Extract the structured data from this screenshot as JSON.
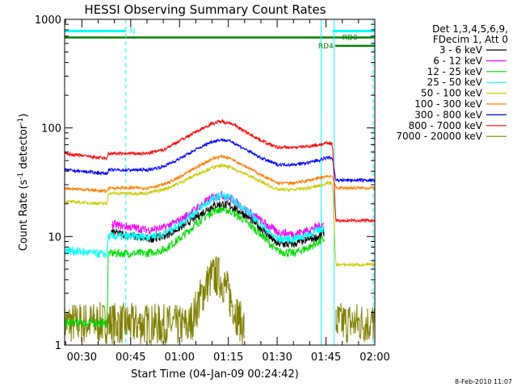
{
  "chart_data": {
    "type": "line",
    "title": "HESSI Observing Summary Count Rates",
    "xlabel": "Start Time (04-Jan-09 00:24:42)",
    "ylabel": "Count Rate (s⁻¹ detector⁻¹)",
    "ylabel_main": "Count Rate (s",
    "ylabel_sup1": "-1",
    "ylabel_mid": " detector",
    "ylabel_sup2": "-1",
    "ylabel_end": ")",
    "x_unit": "minutes",
    "xlim": [
      24.7,
      120
    ],
    "x_ticks": [
      30,
      45,
      60,
      75,
      90,
      105,
      120
    ],
    "x_tick_labels": [
      "00:30",
      "00:45",
      "01:00",
      "01:15",
      "01:30",
      "01:45",
      "02:00"
    ],
    "yscale": "log",
    "ylim": [
      1,
      1000
    ],
    "y_ticks": [
      1,
      10,
      100,
      1000
    ],
    "y_tick_labels": [
      "1",
      "10",
      "100",
      "1000"
    ],
    "grid": false,
    "legend_position": "right",
    "legend_header": [
      "Det 1,3,4,5,6,9,",
      "FDecim 1, Att 0"
    ],
    "timestamp": "8-Feb-2010 11:07",
    "colors": {
      "3-6": "#000000",
      "6-12": "#ff00ff",
      "12-25": "#00dd00",
      "25-50": "#00ffff",
      "50-100": "#cccc00",
      "100-300": "#ff7f00",
      "300-800": "#0000ff",
      "800-7000": "#ff0000",
      "7000-20000": "#808000"
    },
    "series": [
      {
        "name": "3 - 6 keV",
        "key": "3-6",
        "color": "#000000",
        "x": [
          24.7,
          38,
          39,
          50,
          55,
          60,
          65,
          70,
          73,
          76,
          80,
          85,
          90,
          95,
          100,
          103,
          104.5
        ],
        "y": [
          null,
          null,
          11,
          9.5,
          10,
          12,
          15,
          19,
          20,
          19,
          16,
          12,
          8.5,
          8.5,
          9.5,
          10,
          11
        ]
      },
      {
        "name": "6 - 12 keV",
        "key": "6-12",
        "color": "#ff00ff",
        "x": [
          38,
          39,
          50,
          55,
          60,
          65,
          70,
          73,
          76,
          80,
          85,
          90,
          95,
          100,
          103,
          104.5
        ],
        "y": [
          null,
          13,
          11.5,
          12,
          14,
          18,
          23,
          24,
          22,
          18,
          14,
          11,
          10.5,
          11.5,
          12.5,
          13
        ]
      },
      {
        "name": "12 - 25 keV",
        "key": "12-25",
        "color": "#00dd00",
        "x": [
          24.7,
          37.8,
          38,
          50,
          55,
          60,
          65,
          70,
          73,
          76,
          80,
          85,
          90,
          95,
          100,
          103,
          104.5
        ],
        "y": [
          1.6,
          1.6,
          7,
          7,
          7.5,
          9.5,
          13,
          17,
          18,
          17,
          14,
          10.5,
          7.3,
          7,
          8,
          9,
          9.5
        ]
      },
      {
        "name": "25 - 50 keV",
        "key": "25-50",
        "color": "#00ffff",
        "x": [
          24.7,
          37.8,
          38,
          50,
          55,
          60,
          65,
          70,
          73,
          76,
          80,
          85,
          90,
          95,
          100,
          103,
          104.5
        ],
        "y": [
          7.5,
          6.8,
          10,
          10,
          10.5,
          13,
          17,
          22,
          24,
          22,
          18,
          13,
          9.5,
          9.5,
          10.5,
          11.5,
          12
        ]
      },
      {
        "name": "50 - 100 keV",
        "key": "50-100",
        "color": "#cccc00",
        "x": [
          24.7,
          37.8,
          38,
          50,
          55,
          60,
          65,
          70,
          73,
          76,
          80,
          85,
          90,
          95,
          100,
          104,
          105,
          107,
          108,
          120
        ],
        "y": [
          21,
          20,
          25,
          25,
          27,
          31,
          37,
          43,
          45,
          43,
          38,
          32,
          27,
          27,
          28,
          30,
          31,
          31,
          5.5,
          5.5
        ]
      },
      {
        "name": "100 - 300 keV",
        "key": "100-300",
        "color": "#ff7f00",
        "x": [
          24.7,
          37.8,
          38,
          50,
          55,
          60,
          65,
          70,
          73,
          76,
          80,
          85,
          90,
          95,
          100,
          104,
          105,
          107,
          108,
          120
        ],
        "y": [
          28,
          26,
          28,
          28,
          30,
          35,
          43,
          52,
          55,
          52,
          45,
          37,
          31,
          31,
          33,
          35,
          36,
          36,
          28,
          28
        ]
      },
      {
        "name": "300 - 800 keV",
        "key": "300-800",
        "color": "#0000ff",
        "x": [
          24.7,
          37.8,
          38,
          50,
          55,
          60,
          65,
          70,
          73,
          76,
          80,
          85,
          90,
          95,
          100,
          104,
          105,
          107,
          108,
          120
        ],
        "y": [
          41,
          38,
          41,
          41,
          44,
          52,
          63,
          75,
          78,
          75,
          64,
          53,
          46,
          46,
          48,
          52,
          53,
          53,
          33,
          33
        ]
      },
      {
        "name": "800 - 7000 keV",
        "key": "800-7000",
        "color": "#ff0000",
        "x": [
          24.7,
          37.8,
          38,
          50,
          55,
          60,
          65,
          70,
          73,
          76,
          80,
          85,
          90,
          95,
          100,
          104,
          105,
          107,
          108,
          120
        ],
        "y": [
          58,
          52,
          58,
          58,
          63,
          76,
          92,
          110,
          115,
          110,
          93,
          77,
          66,
          66,
          68,
          71,
          72,
          72,
          14,
          14
        ]
      },
      {
        "name": "7000 - 20000 keV",
        "key": "7000-20000",
        "color": "#808000",
        "x": [
          24.7,
          37.5,
          63,
          66,
          68,
          70,
          72,
          74,
          76,
          78,
          80,
          107,
          108,
          120
        ],
        "y": [
          1.6,
          1.6,
          1.5,
          2.5,
          3.5,
          4.3,
          4.3,
          3.5,
          2.5,
          1.8,
          1.4,
          null,
          1.6,
          1.6
        ]
      }
    ],
    "annotations": [
      {
        "label": "N",
        "kind": "night",
        "color": "#00ffff",
        "x_start": 24.7,
        "x_end": 43.5,
        "level": 780
      },
      {
        "label": "N",
        "kind": "night",
        "color": "#00ffff",
        "x_start": 107,
        "x_end": 120,
        "level": 780
      },
      {
        "label": "RD0",
        "kind": "flag",
        "color": "#008000",
        "x_start": 24.7,
        "x_end": 120,
        "level": 680
      },
      {
        "label": "RD4",
        "kind": "flag",
        "color": "#008000",
        "x_start": 107.8,
        "x_end": 120,
        "level": 570
      },
      {
        "label": "",
        "kind": "vline-solid",
        "color": "#00ffff",
        "x": 103.5
      },
      {
        "label": "",
        "kind": "vline-solid",
        "color": "#00ffff",
        "x": 107.5
      },
      {
        "label": "",
        "kind": "vline-dashed",
        "color": "#00ffff",
        "x": 43.5
      },
      {
        "label": "",
        "kind": "vline-dashed",
        "color": "#00ffff",
        "x": 103.5
      },
      {
        "label": "",
        "kind": "vline-dashed",
        "color": "#00ffff",
        "x": 119.5
      }
    ]
  }
}
